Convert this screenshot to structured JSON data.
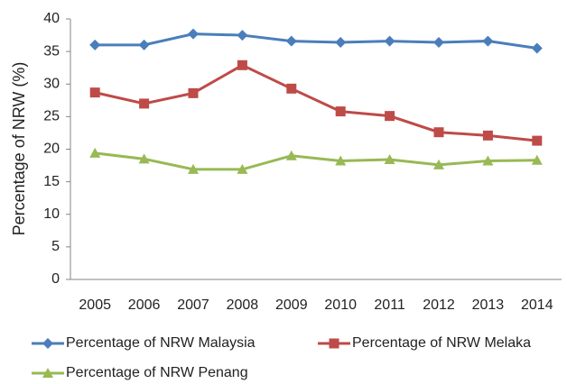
{
  "chart_data": {
    "type": "line",
    "y_label": "Percentage of NRW (%)",
    "categories": [
      "2005",
      "2006",
      "2007",
      "2008",
      "2009",
      "2010",
      "2011",
      "2012",
      "2013",
      "2014"
    ],
    "series": [
      {
        "name": "Percentage of NRW Malaysia",
        "color": "#4a7ebb",
        "marker": "diamond",
        "values": [
          36.0,
          36.0,
          37.7,
          37.5,
          36.6,
          36.4,
          36.6,
          36.4,
          36.6,
          35.5
        ]
      },
      {
        "name": "Percentage of NRW Melaka",
        "color": "#be4b48",
        "marker": "square",
        "values": [
          28.7,
          27.0,
          28.6,
          32.9,
          29.3,
          25.8,
          25.1,
          22.6,
          22.1,
          21.3
        ]
      },
      {
        "name": "Percentage of NRW Penang",
        "color": "#98b954",
        "marker": "triangle",
        "values": [
          19.4,
          18.5,
          16.9,
          16.9,
          19.0,
          18.2,
          18.4,
          17.6,
          18.2,
          18.3
        ]
      }
    ],
    "ylim": [
      0,
      40
    ],
    "yticks": [
      0,
      5,
      10,
      15,
      20,
      25,
      30,
      35,
      40
    ],
    "grid": false,
    "legend": "bottom"
  }
}
